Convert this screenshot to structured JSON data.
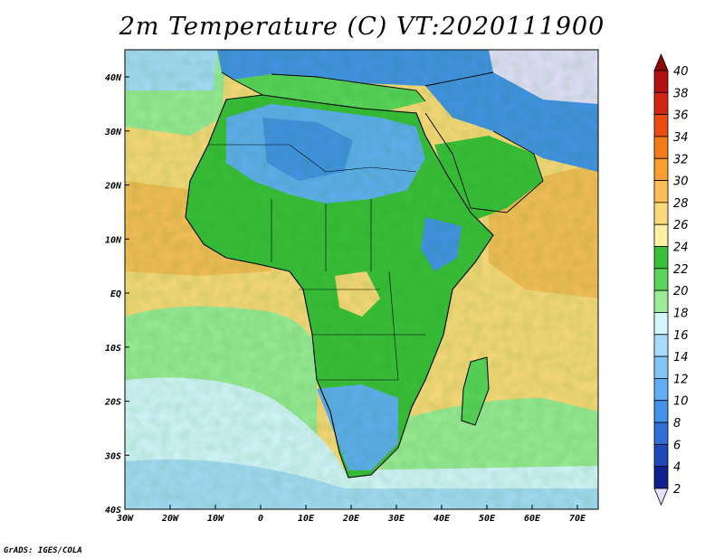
{
  "title": "2m Temperature (C) VT:2020111900",
  "credit": "GrADS: IGES/COLA",
  "lat_labels": [
    "40N",
    "30N",
    "20N",
    "10N",
    "EQ",
    "10S",
    "20S",
    "30S",
    "40S"
  ],
  "lon_labels": [
    "30W",
    "20W",
    "10W",
    "0",
    "10E",
    "20E",
    "30E",
    "40E",
    "50E",
    "60E",
    "70E"
  ],
  "colorbar": {
    "labels": [
      "2",
      "4",
      "6",
      "8",
      "10",
      "12",
      "14",
      "16",
      "18",
      "20",
      "22",
      "24",
      "26",
      "28",
      "30",
      "32",
      "34",
      "36",
      "38",
      "40"
    ],
    "colors": {
      "below": "#e6e0ff",
      "b2": "#10208c",
      "b4": "#1f49b8",
      "b6": "#2f6fd6",
      "b8": "#4592ea",
      "b10": "#62aef4",
      "b12": "#84c5f8",
      "b14": "#a8dbfb",
      "b16": "#d6f6ff",
      "b18": "#9ceb98",
      "b20": "#5cd45c",
      "b22": "#3bbf3b",
      "b24": "#fff1a4",
      "b26": "#fdd97c",
      "b28": "#fbbe58",
      "b30": "#f99e34",
      "b32": "#f47a1c",
      "b34": "#ea4c14",
      "b36": "#d02812",
      "b38": "#b21010",
      "above": "#8c0a0a"
    }
  },
  "map_regions": {
    "ocean_south_cold": "#a8dbfb",
    "ocean_south_cool": "#d6f6ff",
    "ocean_south_mild": "#9ceb98",
    "ocean_tropical": "#fdd97c",
    "ocean_warm": "#fbbe58",
    "mediterranean": "#5cd45c",
    "land_tropical": "#3bbf3b",
    "land_sahara": "#62aef4",
    "land_cold": "#4592ea",
    "asia_cold": "#e6e0ff",
    "coast_line": "#000000"
  }
}
